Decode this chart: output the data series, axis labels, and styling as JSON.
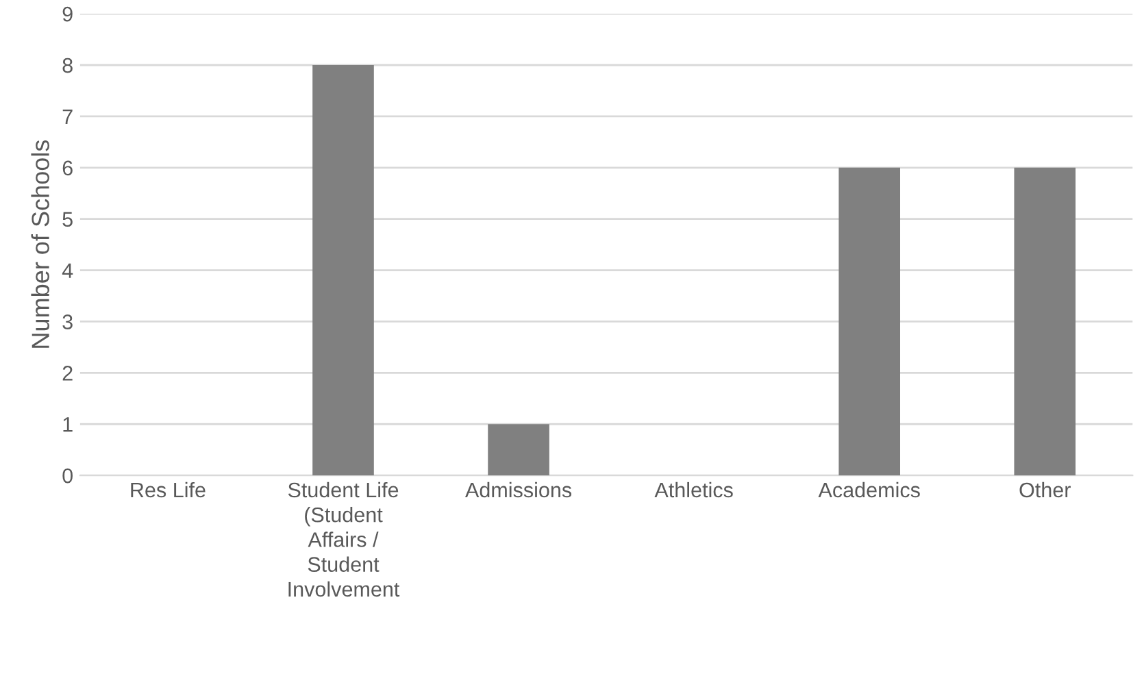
{
  "chart_data": {
    "type": "bar",
    "ylabel": "Number of Schools",
    "categories": [
      "Res Life",
      "Student Life\n(Student\nAffairs /\nStudent\nInvolvement",
      "Admissions",
      "Athletics",
      "Academics",
      "Other"
    ],
    "values": [
      0,
      8,
      1,
      0,
      6,
      6
    ],
    "color": "#808080",
    "ylim": [
      0,
      9
    ],
    "yticks": [
      0,
      1,
      2,
      3,
      4,
      5,
      6,
      7,
      8,
      9
    ],
    "grid": "y"
  }
}
